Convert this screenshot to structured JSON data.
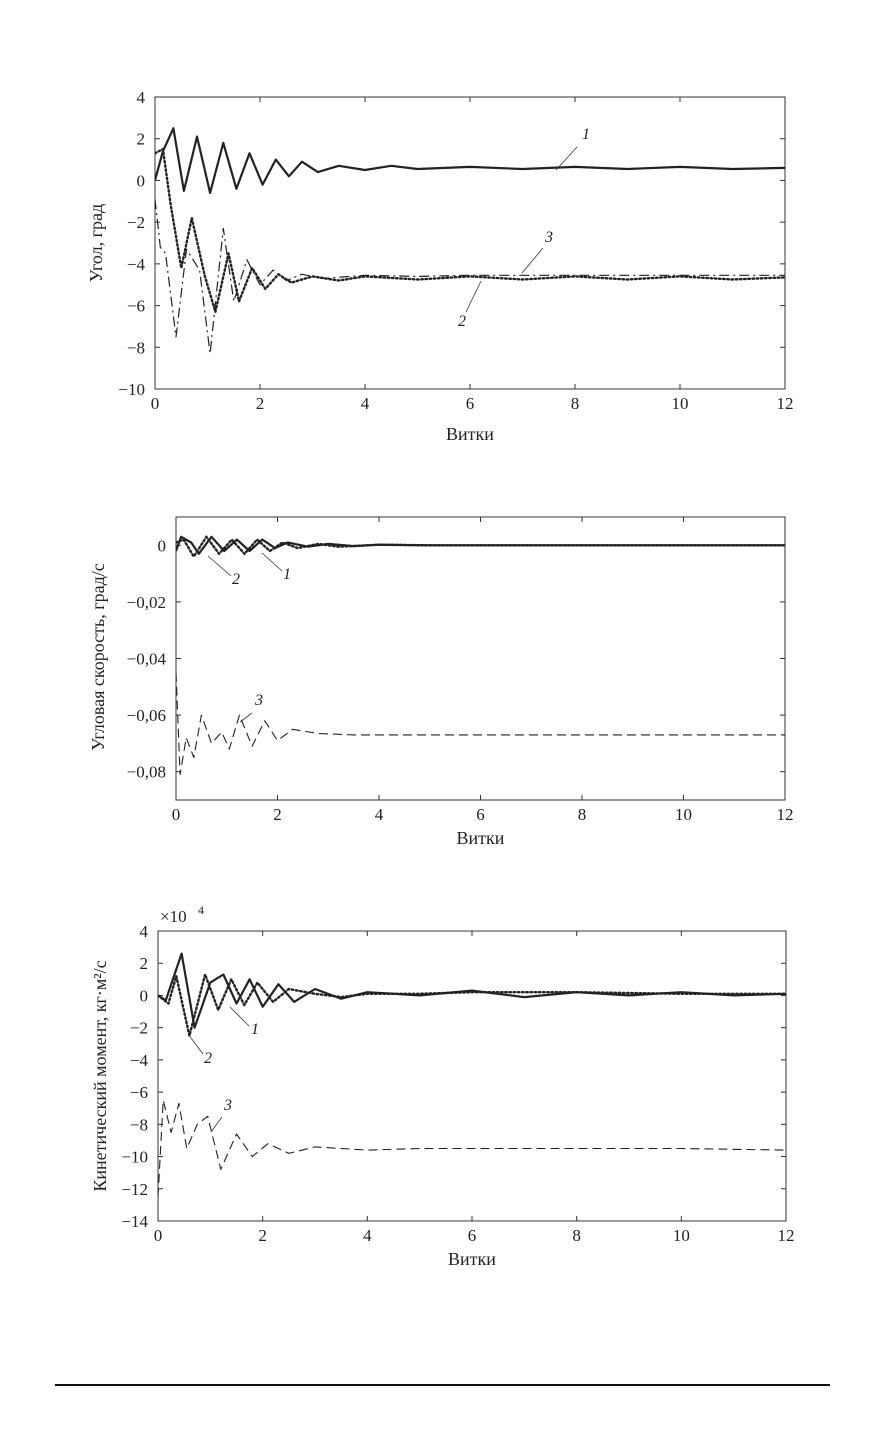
{
  "chart_data": [
    {
      "type": "line",
      "title": "",
      "xlabel": "Витки",
      "ylabel": "Угол, град",
      "xlim": [
        0,
        12
      ],
      "ylim": [
        -10,
        4
      ],
      "xticks": [
        "0",
        "2",
        "4",
        "6",
        "8",
        "10",
        "12"
      ],
      "yticks": [
        "4",
        "2",
        "0",
        "−2",
        "−4",
        "−6",
        "−8",
        "−10"
      ],
      "grid": false,
      "series": [
        {
          "name": "1",
          "style": "solid",
          "points": [
            [
              0,
              0
            ],
            [
              0.15,
              1.4
            ],
            [
              0.35,
              2.5
            ],
            [
              0.55,
              -0.5
            ],
            [
              0.8,
              2.1
            ],
            [
              1.05,
              -0.6
            ],
            [
              1.3,
              1.8
            ],
            [
              1.55,
              -0.4
            ],
            [
              1.8,
              1.3
            ],
            [
              2.05,
              -0.2
            ],
            [
              2.3,
              1.0
            ],
            [
              2.55,
              0.2
            ],
            [
              2.8,
              0.9
            ],
            [
              3.1,
              0.4
            ],
            [
              3.5,
              0.7
            ],
            [
              4,
              0.5
            ],
            [
              4.5,
              0.7
            ],
            [
              5,
              0.55
            ],
            [
              6,
              0.65
            ],
            [
              7,
              0.55
            ],
            [
              8,
              0.65
            ],
            [
              9,
              0.55
            ],
            [
              10,
              0.65
            ],
            [
              11,
              0.55
            ],
            [
              12,
              0.6
            ]
          ]
        },
        {
          "name": "2",
          "style": "dotted",
          "points": [
            [
              0,
              1.3
            ],
            [
              0.15,
              1.5
            ],
            [
              0.3,
              -1.2
            ],
            [
              0.5,
              -4.2
            ],
            [
              0.7,
              -1.8
            ],
            [
              0.95,
              -4.6
            ],
            [
              1.15,
              -6.3
            ],
            [
              1.4,
              -3.5
            ],
            [
              1.6,
              -5.8
            ],
            [
              1.85,
              -4.2
            ],
            [
              2.1,
              -5.2
            ],
            [
              2.35,
              -4.5
            ],
            [
              2.6,
              -4.9
            ],
            [
              3,
              -4.6
            ],
            [
              3.5,
              -4.8
            ],
            [
              4,
              -4.6
            ],
            [
              5,
              -4.75
            ],
            [
              6,
              -4.6
            ],
            [
              7,
              -4.75
            ],
            [
              8,
              -4.6
            ],
            [
              9,
              -4.75
            ],
            [
              10,
              -4.6
            ],
            [
              11,
              -4.75
            ],
            [
              12,
              -4.65
            ]
          ]
        },
        {
          "name": "3",
          "style": "dashdot",
          "points": [
            [
              0,
              -0.9
            ],
            [
              0.1,
              -3.2
            ],
            [
              0.2,
              -3.5
            ],
            [
              0.4,
              -7.5
            ],
            [
              0.6,
              -3.3
            ],
            [
              0.85,
              -4.3
            ],
            [
              1.05,
              -8.3
            ],
            [
              1.3,
              -2.3
            ],
            [
              1.5,
              -5.8
            ],
            [
              1.75,
              -3.8
            ],
            [
              2,
              -5.0
            ],
            [
              2.25,
              -4.3
            ],
            [
              2.5,
              -4.8
            ],
            [
              2.8,
              -4.5
            ],
            [
              3.2,
              -4.7
            ],
            [
              4,
              -4.55
            ],
            [
              5,
              -4.6
            ],
            [
              6,
              -4.55
            ],
            [
              8,
              -4.55
            ],
            [
              10,
              -4.55
            ],
            [
              12,
              -4.55
            ]
          ]
        }
      ],
      "annotations": [
        "1",
        "2",
        "3"
      ]
    },
    {
      "type": "line",
      "title": "",
      "xlabel": "Витки",
      "ylabel": "Угловая скорость, град/с",
      "xlim": [
        0,
        12
      ],
      "ylim": [
        -0.09,
        0.01
      ],
      "xticks": [
        "0",
        "2",
        "4",
        "6",
        "8",
        "10",
        "12"
      ],
      "yticks": [
        "0",
        "−0,02",
        "−0,04",
        "−0,06",
        "−0,08"
      ],
      "grid": false,
      "series": [
        {
          "name": "1",
          "style": "solid",
          "points": [
            [
              0,
              -0.002
            ],
            [
              0.1,
              0.003
            ],
            [
              0.3,
              0.001
            ],
            [
              0.45,
              -0.003
            ],
            [
              0.7,
              0.003
            ],
            [
              0.95,
              -0.002
            ],
            [
              1.2,
              0.002
            ],
            [
              1.45,
              -0.002
            ],
            [
              1.7,
              0.002
            ],
            [
              1.95,
              -0.001
            ],
            [
              2.2,
              0.001
            ],
            [
              2.6,
              -0.0005
            ],
            [
              3,
              0.0005
            ],
            [
              3.5,
              -0.0003
            ],
            [
              4,
              0.0002
            ],
            [
              5,
              0
            ],
            [
              12,
              0
            ]
          ]
        },
        {
          "name": "2",
          "style": "dotted",
          "points": [
            [
              0,
              0.001
            ],
            [
              0.15,
              0.002
            ],
            [
              0.35,
              -0.004
            ],
            [
              0.6,
              0.003
            ],
            [
              0.85,
              -0.003
            ],
            [
              1.1,
              0.002
            ],
            [
              1.35,
              -0.003
            ],
            [
              1.6,
              0.002
            ],
            [
              1.85,
              -0.002
            ],
            [
              2.1,
              0.001
            ],
            [
              2.4,
              -0.001
            ],
            [
              2.8,
              0.0005
            ],
            [
              3.2,
              -0.0005
            ],
            [
              4,
              0.0002
            ],
            [
              5,
              0
            ],
            [
              12,
              0
            ]
          ]
        },
        {
          "name": "3",
          "style": "dashed",
          "points": [
            [
              0,
              -0.045
            ],
            [
              0.08,
              -0.081
            ],
            [
              0.2,
              -0.068
            ],
            [
              0.35,
              -0.075
            ],
            [
              0.5,
              -0.06
            ],
            [
              0.7,
              -0.07
            ],
            [
              0.9,
              -0.066
            ],
            [
              1.05,
              -0.072
            ],
            [
              1.25,
              -0.06
            ],
            [
              1.5,
              -0.071
            ],
            [
              1.75,
              -0.062
            ],
            [
              2,
              -0.069
            ],
            [
              2.3,
              -0.065
            ],
            [
              2.8,
              -0.0665
            ],
            [
              3.5,
              -0.067
            ],
            [
              12,
              -0.067
            ]
          ]
        }
      ],
      "annotations": [
        "1",
        "2",
        "3"
      ]
    },
    {
      "type": "line",
      "title": "",
      "xlabel": "Витки",
      "ylabel": "Кинетический момент, кг·м²/с",
      "y_multiplier": "×10",
      "y_multiplier_exp": "4",
      "xlim": [
        0,
        12
      ],
      "ylim": [
        -14,
        4
      ],
      "xticks": [
        "0",
        "2",
        "4",
        "6",
        "8",
        "10",
        "12"
      ],
      "yticks": [
        "4",
        "2",
        "0",
        "−2",
        "−4",
        "−6",
        "−8",
        "−10",
        "−12",
        "−14"
      ],
      "grid": false,
      "series": [
        {
          "name": "1",
          "style": "solid",
          "points": [
            [
              0,
              0
            ],
            [
              0.15,
              -0.3
            ],
            [
              0.45,
              2.6
            ],
            [
              0.7,
              -2.0
            ],
            [
              1.0,
              0.8
            ],
            [
              1.25,
              1.3
            ],
            [
              1.5,
              -0.5
            ],
            [
              1.75,
              1.0
            ],
            [
              2.0,
              -0.7
            ],
            [
              2.3,
              0.7
            ],
            [
              2.6,
              -0.4
            ],
            [
              3,
              0.4
            ],
            [
              3.5,
              -0.2
            ],
            [
              4,
              0.2
            ],
            [
              5,
              0
            ],
            [
              6,
              0.3
            ],
            [
              7,
              -0.1
            ],
            [
              8,
              0.2
            ],
            [
              9,
              0
            ],
            [
              10,
              0.2
            ],
            [
              11,
              0
            ],
            [
              12,
              0.1
            ]
          ]
        },
        {
          "name": "2",
          "style": "dotted",
          "points": [
            [
              0,
              0
            ],
            [
              0.2,
              -0.5
            ],
            [
              0.35,
              1.2
            ],
            [
              0.6,
              -2.5
            ],
            [
              0.9,
              1.3
            ],
            [
              1.15,
              -0.9
            ],
            [
              1.4,
              1.0
            ],
            [
              1.65,
              -0.6
            ],
            [
              1.9,
              0.8
            ],
            [
              2.2,
              -0.4
            ],
            [
              2.5,
              0.4
            ],
            [
              3,
              0.1
            ],
            [
              3.5,
              -0.1
            ],
            [
              4,
              0.1
            ],
            [
              5,
              0.1
            ],
            [
              6,
              0.2
            ],
            [
              8,
              0.2
            ],
            [
              10,
              0.1
            ],
            [
              12,
              0.1
            ]
          ]
        },
        {
          "name": "3",
          "style": "dashed",
          "points": [
            [
              0,
              -12.5
            ],
            [
              0.1,
              -6.5
            ],
            [
              0.25,
              -8.5
            ],
            [
              0.4,
              -6.7
            ],
            [
              0.55,
              -9.5
            ],
            [
              0.75,
              -8.0
            ],
            [
              0.95,
              -7.5
            ],
            [
              1.2,
              -10.8
            ],
            [
              1.5,
              -8.6
            ],
            [
              1.8,
              -10.0
            ],
            [
              2.1,
              -9.2
            ],
            [
              2.5,
              -9.8
            ],
            [
              3,
              -9.4
            ],
            [
              4,
              -9.6
            ],
            [
              5,
              -9.5
            ],
            [
              6,
              -9.5
            ],
            [
              8,
              -9.5
            ],
            [
              10,
              -9.5
            ],
            [
              12,
              -9.6
            ]
          ]
        }
      ],
      "annotations": [
        "1",
        "2",
        "3"
      ]
    }
  ]
}
